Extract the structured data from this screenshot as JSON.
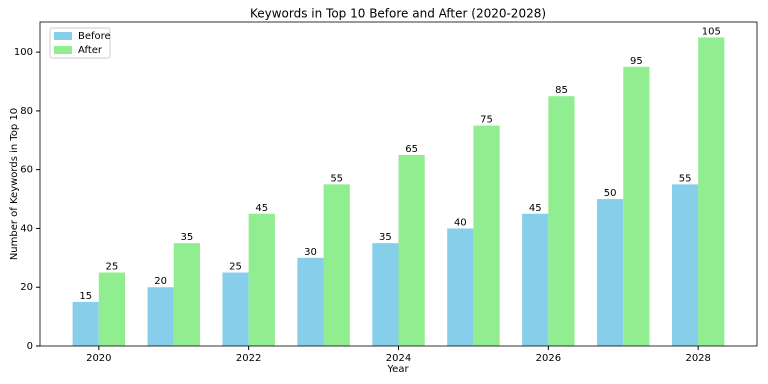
{
  "chart_data": {
    "type": "grouped-bar",
    "title": "Keywords in Top 10 Before and After (2020-2028)",
    "x_label": "Year",
    "y_label": "Number of Keywords in Top 10",
    "x": [
      2020,
      2021,
      2022,
      2023,
      2024,
      2025,
      2026,
      2027,
      2028
    ],
    "series": [
      {
        "name": "Before",
        "color": "#87ceeb",
        "values": [
          15,
          20,
          25,
          30,
          35,
          40,
          45,
          50,
          55
        ]
      },
      {
        "name": "After",
        "color": "#90ee90",
        "values": [
          25,
          35,
          45,
          55,
          65,
          75,
          85,
          95,
          105
        ]
      }
    ],
    "xlim": [
      2019.215,
      2028.785
    ],
    "xticks": [
      2020,
      2022,
      2024,
      2026,
      2028
    ],
    "ylim": [
      0,
      110.25
    ],
    "yticks": [
      0,
      20,
      40,
      60,
      80,
      100
    ],
    "legend": "upper-left",
    "grid": false
  }
}
